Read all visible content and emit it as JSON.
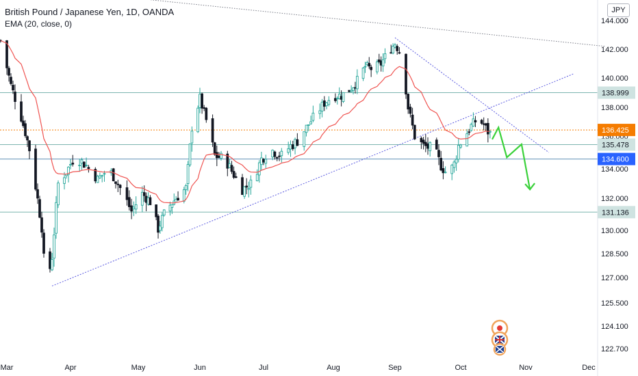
{
  "header": {
    "title": "British Pound / Japanese Yen, 1D, OANDA",
    "indicator": "EMA (20, close, 0)",
    "currency": "JPY"
  },
  "colors": {
    "bull": "#26a69a",
    "bear": "#131722",
    "ema": "#ef5350",
    "support_line": "#7cb5b0",
    "trend_line": "#5a5ae0",
    "current_price": "#f57c00",
    "projection": "#3ad13a",
    "highlight_box": "#2962ff"
  },
  "chart_data": {
    "type": "candlestick",
    "title": "British Pound / Japanese Yen, 1D, OANDA",
    "y_ticks": [
      "144.000",
      "142.000",
      "140.000",
      "138.000",
      "136.000",
      "134.000",
      "132.000",
      "130.000",
      "128.500",
      "127.000",
      "125.500",
      "124.100",
      "122.700"
    ],
    "x_ticks": [
      "Mar",
      "Apr",
      "May",
      "Jun",
      "Jul",
      "Aug",
      "Sep",
      "Oct",
      "Nov",
      "Dec"
    ],
    "levels": [
      {
        "label": "138.999",
        "value": 138.999,
        "style": "support"
      },
      {
        "label": "136.425",
        "value": 136.425,
        "style": "current"
      },
      {
        "label": "135.478",
        "value": 135.478,
        "style": "support"
      },
      {
        "label": "134.600",
        "value": 134.6,
        "style": "highlight"
      },
      {
        "label": "131.136",
        "value": 131.136,
        "style": "support"
      }
    ],
    "ema_period": 20,
    "grid": false
  }
}
